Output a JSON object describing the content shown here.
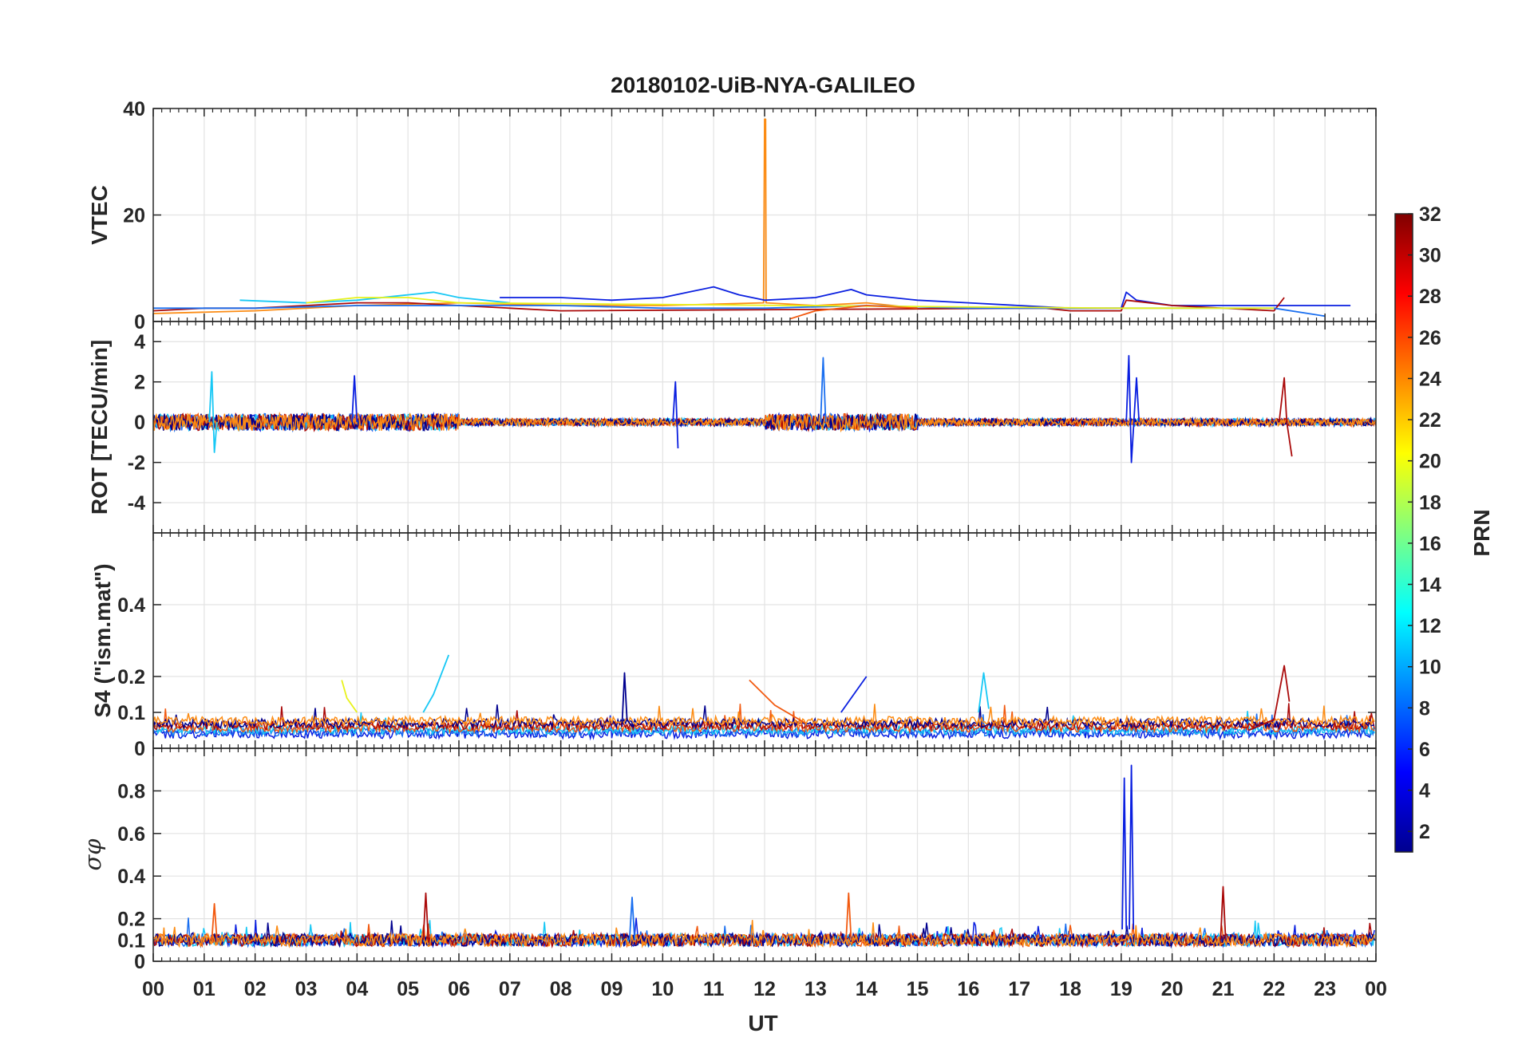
{
  "figure": {
    "title": "20180102-UiB-NYA-GALILEO",
    "xlabel": "UT",
    "x_ticks": [
      "00",
      "01",
      "02",
      "03",
      "04",
      "05",
      "06",
      "07",
      "08",
      "09",
      "10",
      "11",
      "12",
      "13",
      "14",
      "15",
      "16",
      "17",
      "18",
      "19",
      "20",
      "21",
      "22",
      "23",
      "00"
    ]
  },
  "colorbar": {
    "label": "PRN",
    "range": [
      1,
      32
    ],
    "ticks": [
      "2",
      "4",
      "6",
      "8",
      "10",
      "12",
      "14",
      "16",
      "18",
      "20",
      "22",
      "24",
      "26",
      "28",
      "30",
      "32"
    ],
    "colormap": "jet",
    "stops": [
      "#00008f",
      "#0000ff",
      "#0080ff",
      "#00ffff",
      "#80ff80",
      "#ffff00",
      "#ff8000",
      "#ff0000",
      "#800000"
    ]
  },
  "series_colors": {
    "prn_1": "#00008f",
    "prn_4": "#0a1fe0",
    "prn_7": "#1a6ff0",
    "prn_11": "#18c8f5",
    "prn_20": "#e8f21a",
    "prn_24": "#fc8c14",
    "prn_26": "#f25a10",
    "prn_30": "#aa0a0a"
  },
  "chart_data": [
    {
      "type": "line",
      "panel": "VTEC",
      "ylabel": "VTEC",
      "xlim": [
        0,
        24
      ],
      "ylim": [
        0,
        40
      ],
      "y_ticks": [
        "0",
        "20",
        "40"
      ],
      "grid": true,
      "series": [
        {
          "prn_color": "prn_24",
          "x": [
            0,
            2,
            4,
            6,
            8,
            10,
            11.98,
            12.0,
            12.02,
            12.03,
            13,
            14,
            15
          ],
          "y": [
            1.5,
            2,
            3,
            3.5,
            3,
            3,
            3.5,
            38,
            38,
            3.5,
            3,
            3.5,
            2.5
          ]
        },
        {
          "prn_color": "prn_4",
          "x": [
            6.8,
            8,
            9,
            10,
            10.5,
            11,
            11.5,
            12,
            13,
            13.7,
            14,
            15,
            16,
            17,
            18,
            19,
            19.1,
            19.3,
            20,
            22,
            23.5
          ],
          "y": [
            4.5,
            4.5,
            4,
            4.5,
            5.5,
            6.5,
            5,
            4,
            4.5,
            6,
            5,
            4,
            3.5,
            3,
            2.5,
            2.5,
            5.5,
            4,
            3,
            3,
            3
          ]
        },
        {
          "prn_color": "prn_11",
          "x": [
            1.7,
            3,
            4,
            5,
            5.5,
            6,
            7
          ],
          "y": [
            4,
            3.5,
            4,
            5,
            5.5,
            4.5,
            3.5
          ]
        },
        {
          "prn_color": "prn_30",
          "x": [
            0,
            1,
            2,
            3,
            4,
            5,
            6,
            7,
            8,
            17.5,
            18,
            19,
            19.1,
            20,
            22,
            22.2
          ],
          "y": [
            2,
            2.5,
            2.5,
            3,
            3.5,
            3.5,
            3,
            2.5,
            2,
            2.5,
            2,
            2,
            4,
            3,
            2,
            4.5
          ]
        },
        {
          "prn_color": "prn_7",
          "x": [
            0,
            2,
            4,
            6,
            8,
            10,
            12,
            14,
            16,
            18,
            20,
            22,
            23
          ],
          "y": [
            2.5,
            2.5,
            3,
            3,
            3,
            2.5,
            2.5,
            3,
            2.5,
            2.5,
            2.5,
            2.5,
            1
          ]
        },
        {
          "prn_color": "prn_20",
          "x": [
            3,
            4,
            5,
            6,
            19,
            20,
            21,
            22
          ],
          "y": [
            3.5,
            4.5,
            4.5,
            3.5,
            2.5,
            2.5,
            2.5,
            2.5
          ]
        },
        {
          "prn_color": "prn_26",
          "x": [
            12.5,
            13,
            14,
            15
          ],
          "y": [
            0.5,
            2,
            3,
            2.5
          ]
        }
      ]
    },
    {
      "type": "line",
      "panel": "ROT",
      "ylabel": "ROT [TECU/min]",
      "xlim": [
        0,
        24
      ],
      "ylim": [
        -5.5,
        5
      ],
      "y_ticks": [
        "-4",
        "-2",
        "0",
        "2",
        "4"
      ],
      "y_tick_values": [
        -4,
        -2,
        0,
        2,
        4
      ],
      "grid": true,
      "series": [
        {
          "prn_color": "prn_11",
          "x": [
            1.1,
            1.15,
            1.2,
            1.25
          ],
          "y": [
            0,
            2.5,
            -1.5,
            0
          ]
        },
        {
          "prn_color": "prn_4",
          "x": [
            3.9,
            3.95,
            4.0
          ],
          "y": [
            0,
            2.3,
            0
          ]
        },
        {
          "prn_color": "prn_4",
          "x": [
            10.2,
            10.25,
            10.3
          ],
          "y": [
            0,
            2.0,
            -1.3
          ]
        },
        {
          "prn_color": "prn_7",
          "x": [
            13.1,
            13.15,
            13.2
          ],
          "y": [
            0,
            3.2,
            0
          ]
        },
        {
          "prn_color": "prn_4",
          "x": [
            19.1,
            19.15,
            19.2,
            19.3,
            19.35
          ],
          "y": [
            0,
            3.3,
            -2.0,
            2.2,
            0
          ]
        },
        {
          "prn_color": "prn_30",
          "x": [
            22.1,
            22.2,
            22.25,
            22.35
          ],
          "y": [
            0,
            2.2,
            0,
            -1.7
          ]
        }
      ],
      "noise_amplitude": 0.3
    },
    {
      "type": "line",
      "panel": "S4",
      "ylabel": "S4 (\"ism.mat\")",
      "xlim": [
        0,
        24
      ],
      "ylim": [
        0,
        0.6
      ],
      "y_ticks": [
        "0",
        "0.1",
        "0.2",
        "0.4"
      ],
      "y_tick_values": [
        0,
        0.1,
        0.2,
        0.4
      ],
      "grid": true,
      "series": [
        {
          "prn_color": "prn_11",
          "x": [
            5.3,
            5.5,
            5.8
          ],
          "y": [
            0.1,
            0.15,
            0.26
          ]
        },
        {
          "prn_color": "prn_1",
          "x": [
            9.2,
            9.25,
            9.3,
            9.4
          ],
          "y": [
            0.06,
            0.21,
            0.08,
            0.06
          ]
        },
        {
          "prn_color": "prn_26",
          "x": [
            11.7,
            12.2,
            12.8
          ],
          "y": [
            0.19,
            0.12,
            0.07
          ]
        },
        {
          "prn_color": "prn_11",
          "x": [
            16.2,
            16.3,
            16.4
          ],
          "y": [
            0.1,
            0.21,
            0.11
          ]
        },
        {
          "prn_color": "prn_30",
          "x": [
            21.5,
            22.0,
            22.2,
            22.3
          ],
          "y": [
            0.05,
            0.08,
            0.23,
            0.13
          ]
        },
        {
          "prn_color": "prn_20",
          "x": [
            3.7,
            3.8,
            4.0
          ],
          "y": [
            0.19,
            0.14,
            0.1
          ]
        },
        {
          "prn_color": "prn_4",
          "x": [
            13.5,
            13.8,
            14.0
          ],
          "y": [
            0.1,
            0.16,
            0.2
          ]
        }
      ]
    },
    {
      "type": "line",
      "panel": "sigma_phi",
      "ylabel": "σφ",
      "xlim": [
        0,
        24
      ],
      "ylim": [
        0,
        1
      ],
      "y_ticks": [
        "0",
        "0.1",
        "0.2",
        "0.4",
        "0.6",
        "0.8"
      ],
      "y_tick_values": [
        0,
        0.1,
        0.2,
        0.4,
        0.6,
        0.8
      ],
      "grid": true,
      "series": [
        {
          "prn_color": "prn_4",
          "x": [
            19.02,
            19.06,
            19.1
          ],
          "y": [
            0.15,
            0.86,
            0.15
          ]
        },
        {
          "prn_color": "prn_4",
          "x": [
            19.16,
            19.2,
            19.24
          ],
          "y": [
            0.15,
            0.92,
            0.15
          ]
        },
        {
          "prn_color": "prn_30",
          "x": [
            5.3,
            5.35,
            5.4
          ],
          "y": [
            0.1,
            0.32,
            0.1
          ]
        },
        {
          "prn_color": "prn_30",
          "x": [
            20.95,
            21.0,
            21.05
          ],
          "y": [
            0.1,
            0.35,
            0.1
          ]
        },
        {
          "prn_color": "prn_26",
          "x": [
            13.6,
            13.65,
            13.7
          ],
          "y": [
            0.1,
            0.32,
            0.1
          ]
        },
        {
          "prn_color": "prn_7",
          "x": [
            9.35,
            9.4,
            9.45
          ],
          "y": [
            0.1,
            0.3,
            0.1
          ]
        },
        {
          "prn_color": "prn_26",
          "x": [
            1.15,
            1.2,
            1.25
          ],
          "y": [
            0.1,
            0.27,
            0.1
          ]
        }
      ],
      "baseline": 0.1
    }
  ]
}
